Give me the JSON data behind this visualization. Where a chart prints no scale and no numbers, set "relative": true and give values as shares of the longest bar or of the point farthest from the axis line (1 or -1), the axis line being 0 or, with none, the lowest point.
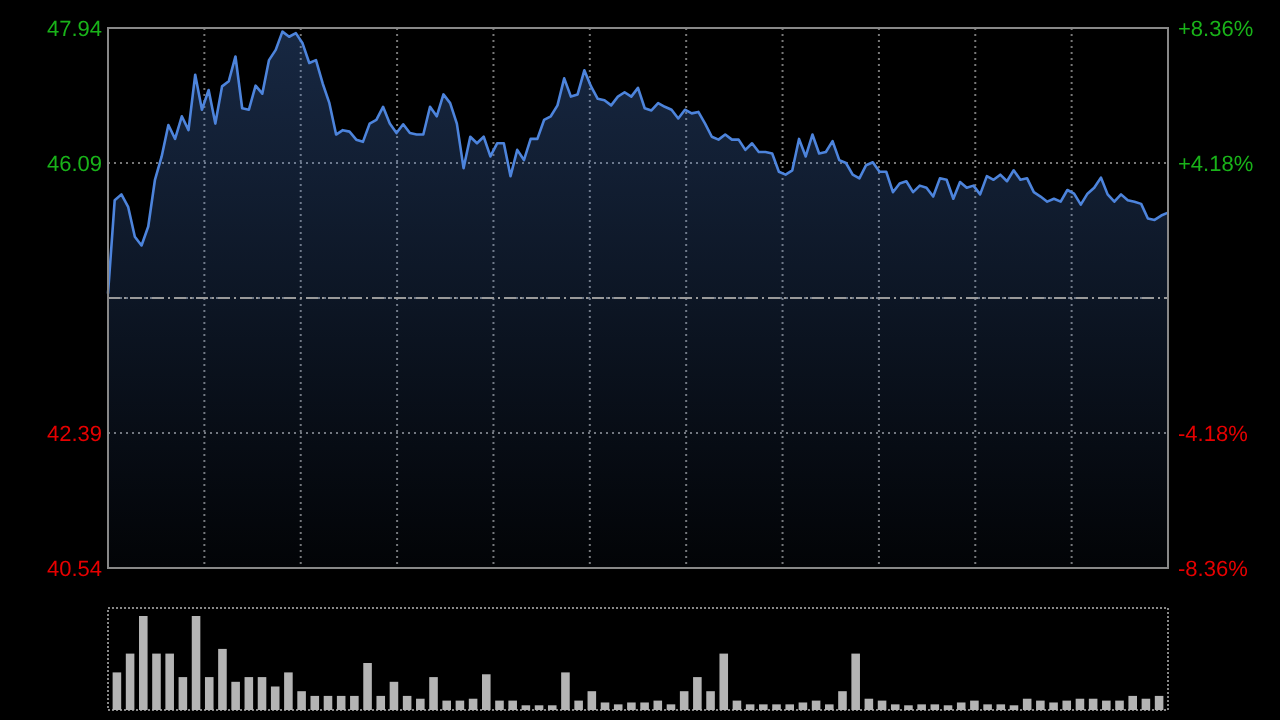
{
  "chart_data": [
    {
      "type": "area",
      "categories": [
        null,
        null,
        null,
        null,
        null,
        null,
        null,
        null,
        null,
        null,
        null,
        null,
        null,
        null,
        null,
        null,
        null,
        null,
        null,
        null,
        null,
        null,
        null,
        null,
        null,
        null,
        null,
        null,
        null,
        null,
        null,
        null,
        null,
        null,
        null,
        null,
        null,
        null,
        null,
        null,
        null,
        null,
        null,
        null,
        null,
        null,
        null,
        null,
        null,
        null,
        null,
        null,
        null,
        null,
        null,
        null,
        null,
        null,
        null,
        null,
        null,
        null,
        null,
        null,
        null,
        null,
        null,
        null,
        null,
        null,
        null,
        null,
        null,
        null,
        null,
        null,
        null,
        null,
        null,
        null,
        null,
        null,
        null,
        null,
        null,
        null,
        null,
        null,
        null,
        null,
        null,
        null,
        null,
        null,
        null,
        null,
        null,
        null,
        null,
        null,
        null,
        null,
        null,
        null,
        null,
        null,
        null,
        null,
        null,
        null,
        null,
        null,
        null,
        null,
        null,
        null,
        null,
        null,
        null,
        null,
        null,
        null,
        null,
        null,
        null,
        null,
        null,
        null,
        null,
        null,
        null,
        null,
        null,
        null,
        null,
        null,
        null,
        null,
        null,
        null,
        null,
        null,
        null,
        null,
        null,
        null,
        null,
        null,
        null,
        null,
        null,
        null,
        null,
        null,
        null,
        null,
        null,
        null,
        null
      ],
      "ylim": [
        40.54,
        47.94
      ],
      "yticks": [
        40.54,
        42.39,
        {
          "value": 44.24,
          "label": null
        },
        46.09,
        47.94
      ],
      "y2lim": [
        -8.36,
        8.36
      ],
      "y2ticks": [
        {
          "value": -8.36,
          "label": "-8.36%"
        },
        {
          "value": -4.18,
          "label": "-4.18%"
        },
        {
          "value": 4.18,
          "label": "+4.18%"
        },
        {
          "value": 8.36,
          "label": "+8.36%"
        }
      ],
      "grid": true,
      "ref_lines": [
        {
          "axis": "y",
          "value": 44.24,
          "color": "#9a9a9a",
          "line_style": "dashdot"
        }
      ],
      "series": [
        {
          "color": "#4d84dc",
          "values": [
            44.3,
            45.58,
            45.66,
            45.49,
            45.08,
            44.96,
            45.22,
            45.86,
            46.18,
            46.61,
            46.42,
            46.73,
            46.54,
            47.3,
            46.82,
            47.09,
            46.63,
            47.14,
            47.21,
            47.55,
            46.84,
            46.82,
            47.15,
            47.04,
            47.5,
            47.64,
            47.89,
            47.82,
            47.87,
            47.73,
            47.46,
            47.5,
            47.18,
            46.91,
            46.48,
            46.54,
            46.52,
            46.41,
            46.38,
            46.63,
            46.68,
            46.86,
            46.63,
            46.5,
            46.62,
            46.5,
            46.48,
            46.48,
            46.86,
            46.73,
            47.03,
            46.91,
            46.63,
            46.02,
            46.45,
            46.36,
            46.45,
            46.18,
            46.36,
            46.36,
            45.91,
            46.27,
            46.13,
            46.42,
            46.42,
            46.68,
            46.73,
            46.88,
            47.25,
            47.0,
            47.03,
            47.36,
            47.14,
            46.97,
            46.95,
            46.88,
            47.0,
            47.06,
            47.0,
            47.12,
            46.84,
            46.81,
            46.91,
            46.86,
            46.82,
            46.7,
            46.82,
            46.77,
            46.79,
            46.63,
            46.45,
            46.41,
            46.48,
            46.41,
            46.41,
            46.27,
            46.36,
            46.24,
            46.24,
            46.22,
            45.97,
            45.93,
            45.99,
            46.42,
            46.18,
            46.48,
            46.22,
            46.24,
            46.39,
            46.13,
            46.09,
            45.93,
            45.88,
            46.06,
            46.1,
            45.97,
            45.97,
            45.69,
            45.81,
            45.84,
            45.69,
            45.78,
            45.75,
            45.63,
            45.88,
            45.86,
            45.6,
            45.83,
            45.75,
            45.78,
            45.66,
            45.91,
            45.86,
            45.93,
            45.84,
            45.99,
            45.86,
            45.88,
            45.69,
            45.63,
            45.56,
            45.6,
            45.56,
            45.72,
            45.67,
            45.52,
            45.67,
            45.75,
            45.89,
            45.66,
            45.56,
            45.66,
            45.58,
            45.56,
            45.53,
            45.33,
            45.31,
            45.37,
            45.41
          ]
        }
      ]
    },
    {
      "type": "bar",
      "relative": true,
      "color": "#b4b4b4",
      "categories": [
        null,
        null,
        null,
        null,
        null,
        null,
        null,
        null,
        null,
        null,
        null,
        null,
        null,
        null,
        null,
        null,
        null,
        null,
        null,
        null,
        null,
        null,
        null,
        null,
        null,
        null,
        null,
        null,
        null,
        null,
        null,
        null,
        null,
        null,
        null,
        null,
        null,
        null,
        null,
        null,
        null,
        null,
        null,
        null,
        null,
        null,
        null,
        null,
        null,
        null,
        null,
        null,
        null,
        null,
        null,
        null,
        null,
        null,
        null,
        null,
        null,
        null,
        null,
        null,
        null,
        null,
        null,
        null,
        null,
        null,
        null,
        null,
        null,
        null,
        null,
        null,
        null,
        null,
        null,
        null
      ],
      "values": [
        0.4,
        0.6,
        1,
        0.6,
        0.6,
        0.35,
        1,
        0.35,
        0.65,
        0.3,
        0.35,
        0.35,
        0.25,
        0.4,
        0.2,
        0.15,
        0.15,
        0.15,
        0.15,
        0.5,
        0.15,
        0.3,
        0.15,
        0.12,
        0.35,
        0.1,
        0.1,
        0.12,
        0.38,
        0.1,
        0.1,
        0.05,
        0.05,
        0.05,
        0.4,
        0.1,
        0.2,
        0.08,
        0.06,
        0.08,
        0.08,
        0.1,
        0.06,
        0.2,
        0.35,
        0.2,
        0.6,
        0.1,
        0.06,
        0.06,
        0.06,
        0.06,
        0.08,
        0.1,
        0.06,
        0.2,
        0.6,
        0.12,
        0.1,
        0.06,
        0.05,
        0.06,
        0.06,
        0.05,
        0.08,
        0.1,
        0.06,
        0.06,
        0.05,
        0.12,
        0.1,
        0.08,
        0.1,
        0.12,
        0.12,
        0.1,
        0.1,
        0.15,
        0.12,
        0.15
      ]
    }
  ]
}
